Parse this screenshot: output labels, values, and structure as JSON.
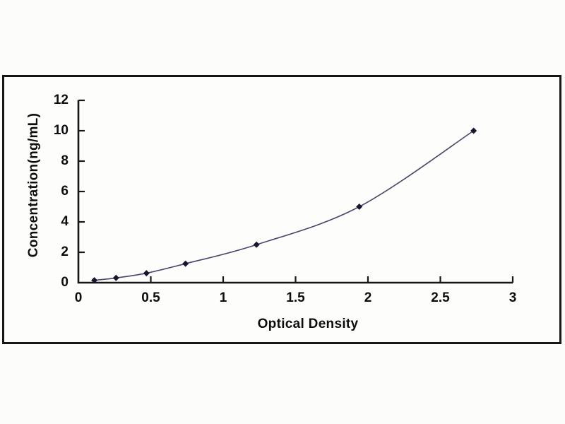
{
  "figure": {
    "background_color": "#fcfcfa",
    "frame_border_color": "#161616",
    "plot_background_color": "#fdfdfc"
  },
  "chart_data": {
    "type": "line",
    "title": "",
    "xlabel": "Optical Density",
    "ylabel": "Concentration(ng/mL)",
    "x": [
      0.11,
      0.26,
      0.47,
      0.74,
      1.23,
      1.94,
      2.73
    ],
    "y": [
      0.156,
      0.312,
      0.625,
      1.25,
      2.5,
      5,
      10
    ],
    "xlim": [
      0,
      3
    ],
    "ylim": [
      0,
      12
    ],
    "x_ticks": [
      "0",
      "0.5",
      "1",
      "1.5",
      "2",
      "2.5",
      "3"
    ],
    "x_tick_values": [
      0,
      0.5,
      1,
      1.5,
      2,
      2.5,
      3
    ],
    "y_ticks": [
      "0",
      "2",
      "4",
      "6",
      "8",
      "10",
      "12"
    ],
    "y_tick_values": [
      0,
      2,
      4,
      6,
      8,
      10,
      12
    ],
    "grid": false,
    "legend": "none",
    "tick_direction": "in",
    "marker": "diamond",
    "axis_color": "#161616",
    "line_color": "#46466b",
    "marker_color": "#16162e"
  }
}
